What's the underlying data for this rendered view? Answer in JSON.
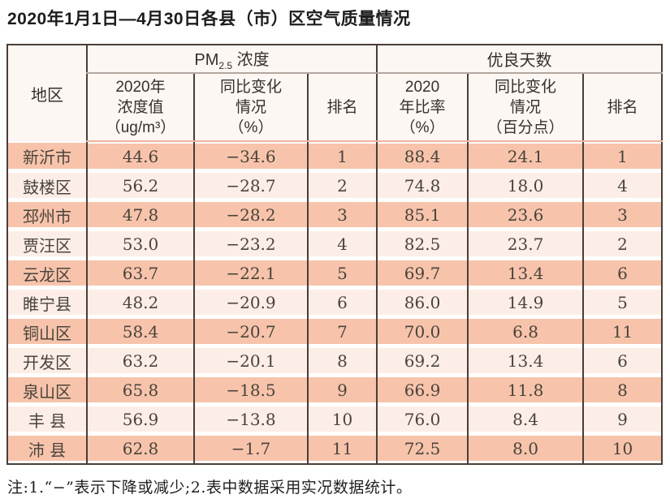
{
  "title": "2020年1月1日—4月30日各县（市）区空气质量情况",
  "table": {
    "region_header": "地区",
    "group_pm": {
      "prefix": "PM",
      "sub": "2.5",
      "suffix": " 浓度"
    },
    "group_good": "优良天数",
    "subheaders": {
      "pm_value": "2020年\n浓度值\n（ug/m³）",
      "pm_change": "同比变化\n情况\n（%）",
      "pm_rank": "排名",
      "good_rate": "2020\n年比率\n（%）",
      "good_change": "同比变化\n情况\n（百分点）",
      "good_rank": "排名"
    },
    "rows": [
      {
        "region": "新沂市",
        "pm_value": "44.6",
        "pm_change": "−34.6",
        "pm_rank": "1",
        "good_rate": "88.4",
        "good_change": "24.1",
        "good_rank": "1"
      },
      {
        "region": "鼓楼区",
        "pm_value": "56.2",
        "pm_change": "−28.7",
        "pm_rank": "2",
        "good_rate": "74.8",
        "good_change": "18.0",
        "good_rank": "4"
      },
      {
        "region": "邳州市",
        "pm_value": "47.8",
        "pm_change": "−28.2",
        "pm_rank": "3",
        "good_rate": "85.1",
        "good_change": "23.6",
        "good_rank": "3"
      },
      {
        "region": "贾汪区",
        "pm_value": "53.0",
        "pm_change": "−23.2",
        "pm_rank": "4",
        "good_rate": "82.5",
        "good_change": "23.7",
        "good_rank": "2"
      },
      {
        "region": "云龙区",
        "pm_value": "63.7",
        "pm_change": "−22.1",
        "pm_rank": "5",
        "good_rate": "69.7",
        "good_change": "13.4",
        "good_rank": "6"
      },
      {
        "region": "睢宁县",
        "pm_value": "48.2",
        "pm_change": "−20.9",
        "pm_rank": "6",
        "good_rate": "86.0",
        "good_change": "14.9",
        "good_rank": "5"
      },
      {
        "region": "铜山区",
        "pm_value": "58.4",
        "pm_change": "−20.7",
        "pm_rank": "7",
        "good_rate": "70.0",
        "good_change": "6.8",
        "good_rank": "11"
      },
      {
        "region": "开发区",
        "pm_value": "63.2",
        "pm_change": "−20.1",
        "pm_rank": "8",
        "good_rate": "69.2",
        "good_change": "13.4",
        "good_rank": "6"
      },
      {
        "region": "泉山区",
        "pm_value": "65.8",
        "pm_change": "−18.5",
        "pm_rank": "9",
        "good_rate": "66.9",
        "good_change": "11.8",
        "good_rank": "8"
      },
      {
        "region": "丰 县",
        "pm_value": "56.9",
        "pm_change": "−13.8",
        "pm_rank": "10",
        "good_rate": "76.0",
        "good_change": "8.4",
        "good_rank": "9"
      },
      {
        "region": "沛 县",
        "pm_value": "62.8",
        "pm_change": "−1.7",
        "pm_rank": "11",
        "good_rate": "72.5",
        "good_change": "8.0",
        "good_rank": "10"
      }
    ]
  },
  "note": "注:1.“−”表示下降或减少;2.表中数据采用实况数据统计。",
  "colors": {
    "salmon": "#f7c4ab",
    "light_band": "#fceee7",
    "border_dark": "#4a3e37",
    "header_line": "#b3a89f",
    "header_accent": "#eeb49a",
    "header_bg": "#fdf7f4",
    "text_dark": "#35302b",
    "text_data": "#4a433c"
  }
}
